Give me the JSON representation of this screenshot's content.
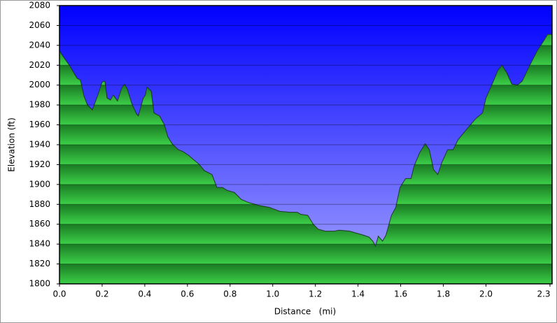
{
  "chart_data": {
    "type": "area",
    "xlabel": "Distance   (mi)",
    "ylabel": "Elevation (ft)",
    "x": [
      0,
      0.01,
      0.033,
      0.049,
      0.082,
      0.098,
      0.115,
      0.131,
      0.154,
      0.18,
      0.2,
      0.213,
      0.223,
      0.239,
      0.252,
      0.272,
      0.292,
      0.305,
      0.318,
      0.338,
      0.361,
      0.37,
      0.393,
      0.403,
      0.41,
      0.43,
      0.443,
      0.469,
      0.492,
      0.508,
      0.528,
      0.557,
      0.58,
      0.607,
      0.656,
      0.679,
      0.715,
      0.738,
      0.764,
      0.787,
      0.82,
      0.852,
      0.885,
      0.934,
      0.984,
      1.033,
      1.082,
      1.115,
      1.131,
      1.164,
      1.19,
      1.213,
      1.246,
      1.289,
      1.311,
      1.361,
      1.393,
      1.426,
      1.452,
      1.469,
      1.482,
      1.495,
      1.515,
      1.531,
      1.557,
      1.577,
      1.597,
      1.623,
      1.649,
      1.662,
      1.689,
      1.715,
      1.734,
      1.754,
      1.774,
      1.793,
      1.82,
      1.846,
      1.869,
      1.911,
      1.951,
      1.984,
      2.0,
      2.033,
      2.056,
      2.075,
      2.098,
      2.121,
      2.148,
      2.17,
      2.203,
      2.239,
      2.272,
      2.289,
      2.31
    ],
    "values": [
      2035,
      2031,
      2024,
      2019,
      2007,
      2005,
      1989,
      1980,
      1975,
      1990,
      2003,
      2004,
      1987,
      1985,
      1990,
      1984,
      1997,
      2001,
      1996,
      1982,
      1971,
      1969,
      1987,
      1990,
      1998,
      1994,
      1972,
      1969,
      1960,
      1948,
      1941,
      1935,
      1933,
      1929,
      1920,
      1914,
      1910,
      1897,
      1897,
      1894,
      1892,
      1885,
      1882,
      1879,
      1877,
      1873,
      1872,
      1872,
      1870,
      1869,
      1860,
      1855,
      1853,
      1853,
      1854,
      1853,
      1851,
      1849,
      1847,
      1843,
      1838,
      1848,
      1843,
      1849,
      1869,
      1877,
      1897,
      1906,
      1906,
      1918,
      1932,
      1941,
      1935,
      1915,
      1910,
      1922,
      1935,
      1935,
      1945,
      1956,
      1966,
      1972,
      1987,
      2003,
      2015,
      2020,
      2012,
      2001,
      2000,
      2004,
      2019,
      2034,
      2045,
      2051,
      2051
    ],
    "color": "#22a032",
    "xlim": [
      0,
      2.31
    ],
    "ylim": [
      1800,
      2080
    ],
    "xticks": [
      {
        "value": 0,
        "label": "0.0"
      },
      0.2,
      0.4,
      0.6,
      0.8,
      {
        "value": 1,
        "label": "1.0"
      },
      1.2,
      1.4,
      1.6,
      1.8,
      {
        "value": 2,
        "label": "2.0"
      },
      2.3
    ],
    "yticks": [
      1800,
      1820,
      1840,
      1860,
      1880,
      1900,
      1920,
      1940,
      1960,
      1980,
      2000,
      2020,
      2040,
      2060,
      2080
    ],
    "grid": true
  }
}
